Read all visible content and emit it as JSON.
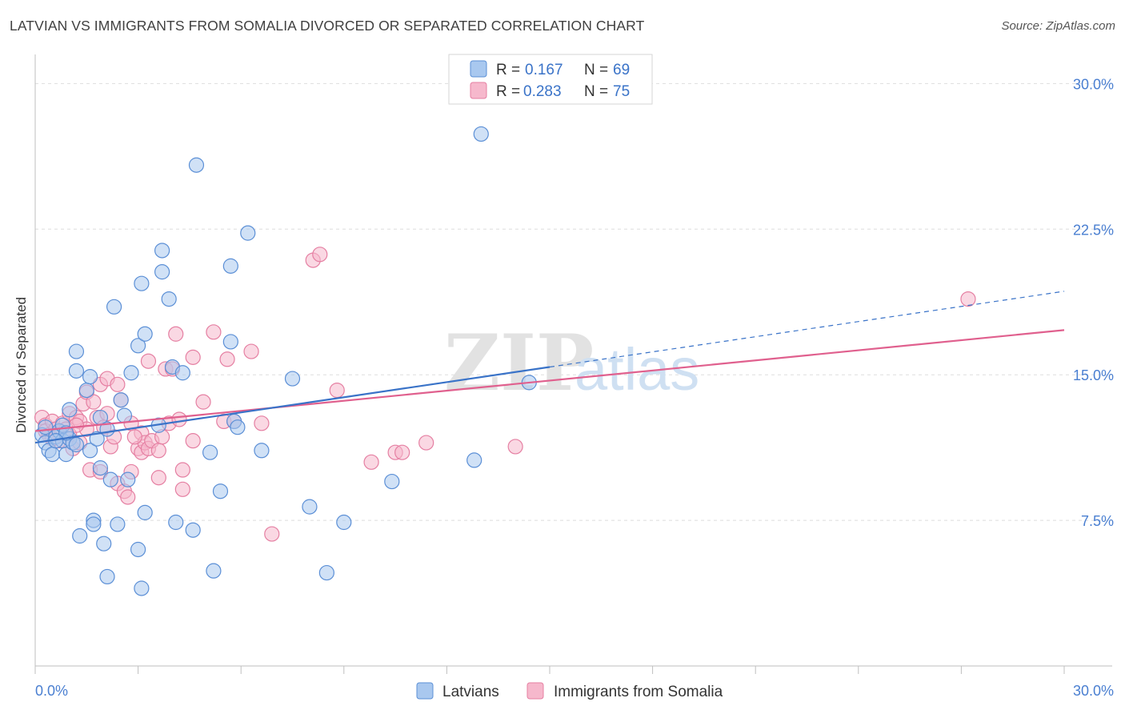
{
  "title": "LATVIAN VS IMMIGRANTS FROM SOMALIA DIVORCED OR SEPARATED CORRELATION CHART",
  "source": "Source: ZipAtlas.com",
  "watermark": {
    "zip": "ZIP",
    "atlas": "atlas"
  },
  "legend": {
    "r_label": "R =",
    "n_label": "N =",
    "rows": [
      {
        "r": "0.167",
        "n": "69"
      },
      {
        "r": "0.283",
        "n": "75"
      }
    ]
  },
  "chart_data": {
    "type": "scatter",
    "title": "LATVIAN VS IMMIGRANTS FROM SOMALIA DIVORCED OR SEPARATED CORRELATION CHART",
    "xlabel": "",
    "ylabel": "Divorced or Separated",
    "xlim": [
      0,
      30
    ],
    "ylim": [
      0,
      31.5
    ],
    "x_tick_labels": [
      "0.0%",
      "30.0%"
    ],
    "y_ticks": [
      7.5,
      15.0,
      22.5,
      30.0
    ],
    "y_tick_labels": [
      "7.5%",
      "15.0%",
      "22.5%",
      "30.0%"
    ],
    "grid": true,
    "legend_position": "top-center",
    "colors": {
      "latvians_fill": "#a9c8ef",
      "latvians_stroke": "#5b8fd6",
      "latvians_line": "#3a73c8",
      "somalia_fill": "#f6b8cc",
      "somalia_stroke": "#e57fa2",
      "somalia_line": "#e0608e"
    },
    "series": [
      {
        "name": "Latvians",
        "r": 0.167,
        "n": 69,
        "trend": {
          "x0": 0.0,
          "y0": 11.5,
          "x1": 15.0,
          "y1": 15.4,
          "dashed_to_x": 30.0,
          "dashed_to_y": 19.3
        },
        "points": [
          [
            0.2,
            11.9
          ],
          [
            0.3,
            12.3
          ],
          [
            0.3,
            11.5
          ],
          [
            0.4,
            11.1
          ],
          [
            0.5,
            10.9
          ],
          [
            0.6,
            11.8
          ],
          [
            0.7,
            12.1
          ],
          [
            0.8,
            11.6
          ],
          [
            0.9,
            10.9
          ],
          [
            1.0,
            11.7
          ],
          [
            1.1,
            11.5
          ],
          [
            0.8,
            12.4
          ],
          [
            0.9,
            12.0
          ],
          [
            1.0,
            13.2
          ],
          [
            1.2,
            11.4
          ],
          [
            1.2,
            16.2
          ],
          [
            1.2,
            15.2
          ],
          [
            1.3,
            6.7
          ],
          [
            1.5,
            14.2
          ],
          [
            1.6,
            14.9
          ],
          [
            1.6,
            11.1
          ],
          [
            1.7,
            7.5
          ],
          [
            1.7,
            7.3
          ],
          [
            1.8,
            11.7
          ],
          [
            1.9,
            12.8
          ],
          [
            1.9,
            10.2
          ],
          [
            2.0,
            6.3
          ],
          [
            2.1,
            12.2
          ],
          [
            2.1,
            4.6
          ],
          [
            2.2,
            9.6
          ],
          [
            2.3,
            18.5
          ],
          [
            2.4,
            7.3
          ],
          [
            2.5,
            13.7
          ],
          [
            2.6,
            12.9
          ],
          [
            2.7,
            9.6
          ],
          [
            2.8,
            15.1
          ],
          [
            3.0,
            6.0
          ],
          [
            3.0,
            16.5
          ],
          [
            3.1,
            4.0
          ],
          [
            3.1,
            19.7
          ],
          [
            3.2,
            7.9
          ],
          [
            3.2,
            17.1
          ],
          [
            3.6,
            12.4
          ],
          [
            3.7,
            21.4
          ],
          [
            3.7,
            20.3
          ],
          [
            3.9,
            18.9
          ],
          [
            4.0,
            15.4
          ],
          [
            4.1,
            7.4
          ],
          [
            4.3,
            15.1
          ],
          [
            4.6,
            7.0
          ],
          [
            4.7,
            25.8
          ],
          [
            5.1,
            11.0
          ],
          [
            5.2,
            4.9
          ],
          [
            5.4,
            9.0
          ],
          [
            5.7,
            20.6
          ],
          [
            5.7,
            16.7
          ],
          [
            5.8,
            12.6
          ],
          [
            5.9,
            12.3
          ],
          [
            6.2,
            22.3
          ],
          [
            6.6,
            11.1
          ],
          [
            7.5,
            14.8
          ],
          [
            8.0,
            8.2
          ],
          [
            8.5,
            4.8
          ],
          [
            9.0,
            7.4
          ],
          [
            10.4,
            9.5
          ],
          [
            12.8,
            10.6
          ],
          [
            13.0,
            27.4
          ],
          [
            14.4,
            14.6
          ],
          [
            0.6,
            11.6
          ]
        ]
      },
      {
        "name": "Immigrants from Somalia",
        "r": 0.283,
        "n": 75,
        "trend": {
          "x0": 0.0,
          "y0": 12.1,
          "x1": 30.0,
          "y1": 17.3
        },
        "points": [
          [
            0.2,
            12.8
          ],
          [
            0.3,
            12.4
          ],
          [
            0.3,
            12.1
          ],
          [
            0.4,
            11.9
          ],
          [
            0.5,
            12.6
          ],
          [
            0.6,
            12.2
          ],
          [
            0.7,
            12.0
          ],
          [
            0.7,
            11.6
          ],
          [
            0.8,
            12.5
          ],
          [
            0.9,
            12.2
          ],
          [
            1.0,
            11.9
          ],
          [
            1.0,
            13.0
          ],
          [
            1.1,
            11.2
          ],
          [
            1.2,
            12.8
          ],
          [
            1.3,
            12.6
          ],
          [
            1.3,
            11.5
          ],
          [
            1.4,
            13.5
          ],
          [
            1.5,
            14.1
          ],
          [
            1.5,
            12.2
          ],
          [
            1.6,
            10.1
          ],
          [
            1.7,
            13.6
          ],
          [
            1.8,
            12.8
          ],
          [
            1.9,
            14.5
          ],
          [
            1.9,
            10.0
          ],
          [
            2.0,
            12.3
          ],
          [
            2.1,
            14.8
          ],
          [
            2.1,
            13.0
          ],
          [
            2.2,
            11.3
          ],
          [
            2.3,
            11.8
          ],
          [
            2.4,
            14.5
          ],
          [
            2.4,
            9.4
          ],
          [
            2.5,
            13.7
          ],
          [
            2.6,
            9.0
          ],
          [
            2.7,
            8.7
          ],
          [
            2.8,
            12.5
          ],
          [
            2.8,
            10.0
          ],
          [
            3.0,
            11.2
          ],
          [
            3.1,
            12.0
          ],
          [
            3.1,
            11.0
          ],
          [
            3.2,
            11.5
          ],
          [
            3.3,
            15.7
          ],
          [
            3.3,
            11.2
          ],
          [
            3.4,
            11.6
          ],
          [
            3.6,
            9.7
          ],
          [
            3.6,
            11.1
          ],
          [
            3.7,
            11.8
          ],
          [
            3.8,
            15.3
          ],
          [
            3.9,
            12.5
          ],
          [
            4.0,
            15.3
          ],
          [
            4.1,
            17.1
          ],
          [
            4.2,
            12.7
          ],
          [
            4.3,
            9.1
          ],
          [
            4.3,
            10.1
          ],
          [
            4.6,
            11.6
          ],
          [
            4.6,
            15.9
          ],
          [
            4.9,
            13.6
          ],
          [
            5.2,
            17.2
          ],
          [
            5.5,
            12.6
          ],
          [
            5.6,
            15.8
          ],
          [
            5.8,
            12.6
          ],
          [
            6.3,
            16.2
          ],
          [
            6.6,
            12.5
          ],
          [
            6.9,
            6.8
          ],
          [
            8.1,
            20.9
          ],
          [
            8.3,
            21.2
          ],
          [
            8.8,
            14.2
          ],
          [
            9.8,
            10.5
          ],
          [
            10.5,
            11.0
          ],
          [
            10.7,
            11.0
          ],
          [
            11.4,
            11.5
          ],
          [
            14.0,
            11.3
          ],
          [
            27.2,
            18.9
          ],
          [
            0.5,
            11.7
          ],
          [
            1.2,
            12.4
          ],
          [
            2.9,
            11.8
          ]
        ]
      }
    ]
  },
  "bottom_legend": [
    "Latvians",
    "Immigrants from Somalia"
  ]
}
